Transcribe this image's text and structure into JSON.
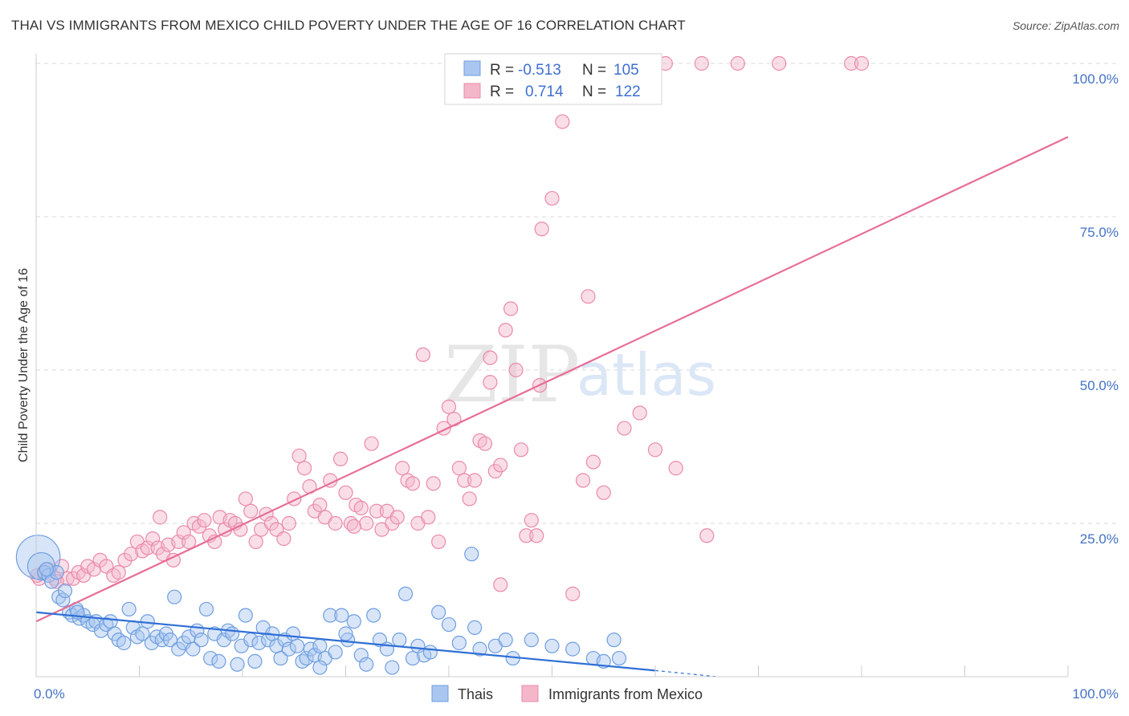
{
  "title": "THAI VS IMMIGRANTS FROM MEXICO CHILD POVERTY UNDER THE AGE OF 16 CORRELATION CHART",
  "source": "Source: ZipAtlas.com",
  "watermark": {
    "zip": "ZIP",
    "atlas": "atlas"
  },
  "colors": {
    "thais_fill": "#a9c6f0",
    "thais_stroke": "#6f9fe0",
    "thais_line": "#2f6fd6",
    "mexico_fill": "#f4b6c9",
    "mexico_stroke": "#ea8aab",
    "mexico_line": "#e76e98",
    "grid": "#d8d8d8",
    "axis_text": "#4472c4"
  },
  "legend_box": {
    "rows": [
      {
        "r_label": "R =",
        "r_value": "-0.513",
        "n_label": "N =",
        "n_value": "105"
      },
      {
        "r_label": "R =",
        "r_value": "0.714",
        "n_label": "N =",
        "n_value": "122"
      }
    ]
  },
  "bottom_legend": [
    "Thais",
    "Immigrants from Mexico"
  ],
  "chart_data": {
    "type": "scatter",
    "title": "THAI VS IMMIGRANTS FROM MEXICO CHILD POVERTY UNDER THE AGE OF 16 CORRELATION CHART",
    "xlabel": "",
    "ylabel": "Child Poverty Under the Age of 16",
    "xlim": [
      0,
      100
    ],
    "ylim": [
      0,
      100
    ],
    "x_tick_labels": [
      "0.0%",
      "100.0%"
    ],
    "y_tick_labels": [
      "100.0%",
      "75.0%",
      "50.0%",
      "25.0%"
    ],
    "y_ticks": [
      100,
      75,
      50,
      25
    ],
    "grid": true,
    "legend_position": "top-center",
    "series": [
      {
        "name": "Thais",
        "R": -0.513,
        "N": 105,
        "trend": {
          "x0": 0,
          "y0": 10.5,
          "x1": 60,
          "y1": 1.0,
          "dash_to_x": 66,
          "dash_to_y": 0.0
        },
        "points": [
          [
            0.2,
            19.5
          ],
          [
            0.5,
            18
          ],
          [
            0.8,
            17
          ],
          [
            1.2,
            16.5
          ],
          [
            1.5,
            15.5
          ],
          [
            2.0,
            17
          ],
          [
            2.2,
            13
          ],
          [
            2.6,
            12.5
          ],
          [
            3.2,
            10.5
          ],
          [
            3.5,
            10
          ],
          [
            3.9,
            11
          ],
          [
            4.2,
            9.5
          ],
          [
            4.6,
            10
          ],
          [
            5.0,
            9
          ],
          [
            5.5,
            8.5
          ],
          [
            5.8,
            9
          ],
          [
            6.3,
            7.5
          ],
          [
            6.8,
            8.5
          ],
          [
            7.2,
            9
          ],
          [
            7.6,
            7
          ],
          [
            8.0,
            6
          ],
          [
            8.5,
            5.5
          ],
          [
            9.0,
            11
          ],
          [
            9.4,
            8
          ],
          [
            9.8,
            6.5
          ],
          [
            10.3,
            7
          ],
          [
            10.8,
            9
          ],
          [
            11.2,
            5.5
          ],
          [
            11.7,
            6.5
          ],
          [
            12.2,
            6
          ],
          [
            12.6,
            7
          ],
          [
            13.0,
            6
          ],
          [
            13.4,
            13
          ],
          [
            13.8,
            4.5
          ],
          [
            14.3,
            5.5
          ],
          [
            14.8,
            6.5
          ],
          [
            15.2,
            4.5
          ],
          [
            15.6,
            7.5
          ],
          [
            16.0,
            6
          ],
          [
            16.5,
            11
          ],
          [
            16.9,
            3
          ],
          [
            17.3,
            7
          ],
          [
            17.7,
            2.5
          ],
          [
            18.2,
            6
          ],
          [
            18.6,
            7.5
          ],
          [
            19.0,
            7
          ],
          [
            19.5,
            2
          ],
          [
            19.9,
            5
          ],
          [
            20.3,
            10
          ],
          [
            20.8,
            6
          ],
          [
            21.2,
            2.5
          ],
          [
            21.6,
            5.5
          ],
          [
            22.0,
            8
          ],
          [
            22.5,
            6
          ],
          [
            22.9,
            7
          ],
          [
            23.3,
            5
          ],
          [
            23.7,
            3
          ],
          [
            24.1,
            6
          ],
          [
            24.5,
            4.5
          ],
          [
            24.9,
            7
          ],
          [
            25.3,
            5
          ],
          [
            25.8,
            2.5
          ],
          [
            26.2,
            3
          ],
          [
            26.6,
            4.5
          ],
          [
            27.0,
            3.5
          ],
          [
            27.5,
            5
          ],
          [
            28.0,
            3
          ],
          [
            28.5,
            10
          ],
          [
            29.0,
            4
          ],
          [
            29.6,
            10
          ],
          [
            30.2,
            6
          ],
          [
            30.8,
            9
          ],
          [
            31.5,
            3.5
          ],
          [
            32.0,
            2
          ],
          [
            32.7,
            10
          ],
          [
            33.3,
            6
          ],
          [
            34.0,
            4.5
          ],
          [
            34.5,
            1.5
          ],
          [
            35.2,
            6
          ],
          [
            35.8,
            13.5
          ],
          [
            36.5,
            3
          ],
          [
            37.0,
            5
          ],
          [
            37.6,
            3.5
          ],
          [
            38.2,
            4
          ],
          [
            39.0,
            10.5
          ],
          [
            40.0,
            8.5
          ],
          [
            41.0,
            5.5
          ],
          [
            42.2,
            20
          ],
          [
            42.5,
            8
          ],
          [
            43.0,
            4.5
          ],
          [
            44.5,
            5
          ],
          [
            45.5,
            6
          ],
          [
            46.2,
            3
          ],
          [
            48.0,
            6
          ],
          [
            50.0,
            5
          ],
          [
            52.0,
            4.5
          ],
          [
            54.0,
            3
          ],
          [
            55.0,
            2.5
          ],
          [
            56.0,
            6
          ],
          [
            56.5,
            3
          ],
          [
            1.0,
            17.5
          ],
          [
            2.8,
            14
          ],
          [
            4.0,
            10.5
          ],
          [
            27.5,
            1.5
          ],
          [
            30.0,
            7
          ]
        ],
        "point_sizes": {
          "0": 3.2,
          "1": 2.0
        }
      },
      {
        "name": "Immigrants from Mexico",
        "R": 0.714,
        "N": 122,
        "trend": {
          "x0": 0,
          "y0": 9.0,
          "x1": 100,
          "y1": 88.0
        },
        "points": [
          [
            0.3,
            16
          ],
          [
            0.7,
            17
          ],
          [
            1.2,
            17.5
          ],
          [
            1.8,
            16
          ],
          [
            2.5,
            18
          ],
          [
            3.0,
            16
          ],
          [
            3.6,
            16
          ],
          [
            4.1,
            17
          ],
          [
            4.6,
            16.5
          ],
          [
            5.0,
            18
          ],
          [
            5.6,
            17.5
          ],
          [
            6.2,
            19
          ],
          [
            6.8,
            18
          ],
          [
            7.5,
            16.5
          ],
          [
            8.0,
            17
          ],
          [
            8.6,
            19
          ],
          [
            9.2,
            20
          ],
          [
            9.8,
            22
          ],
          [
            10.3,
            20.5
          ],
          [
            10.8,
            21
          ],
          [
            11.3,
            22.5
          ],
          [
            11.8,
            21
          ],
          [
            12.3,
            20
          ],
          [
            12.8,
            21.5
          ],
          [
            13.3,
            19
          ],
          [
            13.8,
            22
          ],
          [
            14.3,
            23.5
          ],
          [
            14.8,
            22
          ],
          [
            15.3,
            25
          ],
          [
            15.8,
            24.5
          ],
          [
            16.3,
            25.5
          ],
          [
            16.8,
            23
          ],
          [
            17.3,
            22
          ],
          [
            17.8,
            26
          ],
          [
            18.3,
            24
          ],
          [
            18.8,
            25.5
          ],
          [
            19.3,
            25
          ],
          [
            19.8,
            24
          ],
          [
            20.3,
            29
          ],
          [
            20.8,
            27
          ],
          [
            21.3,
            22
          ],
          [
            21.8,
            24
          ],
          [
            22.3,
            26.5
          ],
          [
            22.8,
            25
          ],
          [
            23.3,
            24
          ],
          [
            24.0,
            22.5
          ],
          [
            24.5,
            25
          ],
          [
            25.0,
            29
          ],
          [
            25.5,
            36
          ],
          [
            26.0,
            34
          ],
          [
            26.5,
            31
          ],
          [
            27.0,
            27
          ],
          [
            27.5,
            28
          ],
          [
            28.0,
            26
          ],
          [
            28.5,
            32
          ],
          [
            29.0,
            25
          ],
          [
            29.5,
            35.5
          ],
          [
            30.0,
            30
          ],
          [
            30.5,
            25
          ],
          [
            31.0,
            28
          ],
          [
            31.5,
            27.5
          ],
          [
            32.0,
            25
          ],
          [
            32.5,
            38
          ],
          [
            33.0,
            27
          ],
          [
            33.5,
            24
          ],
          [
            34.0,
            27
          ],
          [
            34.5,
            25
          ],
          [
            35.0,
            26
          ],
          [
            35.5,
            34
          ],
          [
            36.0,
            32
          ],
          [
            36.5,
            31.5
          ],
          [
            37.0,
            25
          ],
          [
            37.5,
            52.5
          ],
          [
            38.0,
            26
          ],
          [
            38.5,
            31.5
          ],
          [
            39.0,
            22
          ],
          [
            39.5,
            40.5
          ],
          [
            40.0,
            44
          ],
          [
            40.5,
            42
          ],
          [
            41.0,
            34
          ],
          [
            41.5,
            32
          ],
          [
            42.0,
            29
          ],
          [
            42.5,
            32
          ],
          [
            43.0,
            38.5
          ],
          [
            43.5,
            38
          ],
          [
            44.0,
            52
          ],
          [
            44.5,
            33.5
          ],
          [
            45.0,
            34.5
          ],
          [
            45.5,
            56.5
          ],
          [
            46.0,
            60
          ],
          [
            47.0,
            37
          ],
          [
            47.5,
            23
          ],
          [
            48.0,
            25.5
          ],
          [
            48.5,
            23
          ],
          [
            49.0,
            73
          ],
          [
            50.0,
            78
          ],
          [
            51.0,
            90.5
          ],
          [
            52.0,
            13.5
          ],
          [
            53.0,
            32
          ],
          [
            53.5,
            62
          ],
          [
            54.0,
            35
          ],
          [
            55.0,
            30
          ],
          [
            57.0,
            40.5
          ],
          [
            58.5,
            43
          ],
          [
            59.0,
            100
          ],
          [
            60.0,
            37
          ],
          [
            61.0,
            100
          ],
          [
            62.0,
            34
          ],
          [
            64.5,
            100
          ],
          [
            65.0,
            23
          ],
          [
            68.0,
            100
          ],
          [
            72.0,
            100
          ],
          [
            79.0,
            100
          ],
          [
            80.0,
            100
          ],
          [
            45.0,
            15
          ],
          [
            48.8,
            47.5
          ],
          [
            44.0,
            48
          ],
          [
            46.5,
            50
          ],
          [
            0.1,
            16.5
          ],
          [
            2.0,
            15.5
          ],
          [
            12.0,
            26
          ],
          [
            30.8,
            24.5
          ]
        ]
      }
    ]
  }
}
